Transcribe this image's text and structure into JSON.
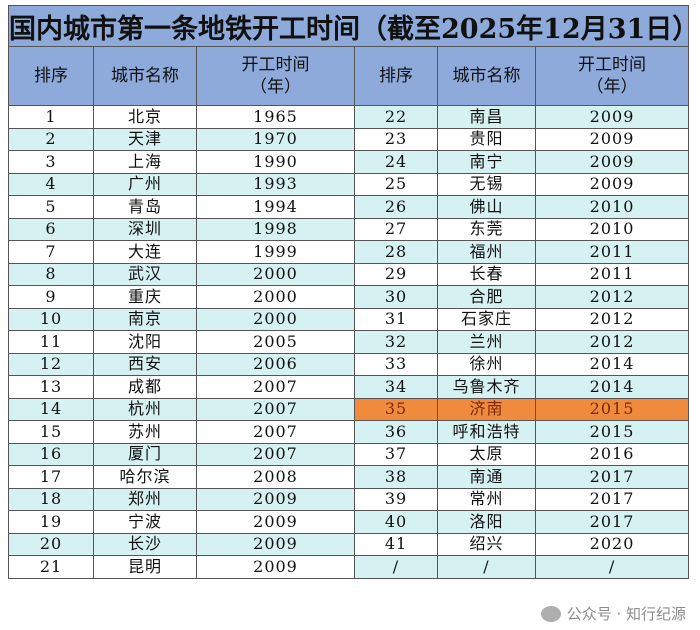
{
  "title": "国内城市第一条地铁开工时间（截至2025年12月31日）",
  "headers": {
    "rank": "排序",
    "city": "城市名称",
    "year_line1": "开工时间",
    "year_line2": "（年）"
  },
  "colors": {
    "header": "#8eaadb",
    "stripe": "#d6f1f1",
    "highlight": "#f08a3c"
  },
  "highlighted_rank": "35",
  "left": [
    [
      "1",
      "北京",
      "1965"
    ],
    [
      "2",
      "天津",
      "1970"
    ],
    [
      "3",
      "上海",
      "1990"
    ],
    [
      "4",
      "广州",
      "1993"
    ],
    [
      "5",
      "青岛",
      "1994"
    ],
    [
      "6",
      "深圳",
      "1998"
    ],
    [
      "7",
      "大连",
      "1999"
    ],
    [
      "8",
      "武汉",
      "2000"
    ],
    [
      "9",
      "重庆",
      "2000"
    ],
    [
      "10",
      "南京",
      "2000"
    ],
    [
      "11",
      "沈阳",
      "2005"
    ],
    [
      "12",
      "西安",
      "2006"
    ],
    [
      "13",
      "成都",
      "2007"
    ],
    [
      "14",
      "杭州",
      "2007"
    ],
    [
      "15",
      "苏州",
      "2007"
    ],
    [
      "16",
      "厦门",
      "2007"
    ],
    [
      "17",
      "哈尔滨",
      "2008"
    ],
    [
      "18",
      "郑州",
      "2009"
    ],
    [
      "19",
      "宁波",
      "2009"
    ],
    [
      "20",
      "长沙",
      "2009"
    ],
    [
      "21",
      "昆明",
      "2009"
    ]
  ],
  "right": [
    [
      "22",
      "南昌",
      "2009"
    ],
    [
      "23",
      "贵阳",
      "2009"
    ],
    [
      "24",
      "南宁",
      "2009"
    ],
    [
      "25",
      "无锡",
      "2009"
    ],
    [
      "26",
      "佛山",
      "2010"
    ],
    [
      "27",
      "东莞",
      "2010"
    ],
    [
      "28",
      "福州",
      "2011"
    ],
    [
      "29",
      "长春",
      "2011"
    ],
    [
      "30",
      "合肥",
      "2012"
    ],
    [
      "31",
      "石家庄",
      "2012"
    ],
    [
      "32",
      "兰州",
      "2012"
    ],
    [
      "33",
      "徐州",
      "2014"
    ],
    [
      "34",
      "乌鲁木齐",
      "2014"
    ],
    [
      "35",
      "济南",
      "2015"
    ],
    [
      "36",
      "呼和浩特",
      "2015"
    ],
    [
      "37",
      "太原",
      "2016"
    ],
    [
      "38",
      "南通",
      "2017"
    ],
    [
      "39",
      "常州",
      "2017"
    ],
    [
      "40",
      "洛阳",
      "2017"
    ],
    [
      "41",
      "绍兴",
      "2020"
    ],
    [
      "/",
      "/",
      "/"
    ]
  ],
  "watermark": {
    "icon": "wechat-icon",
    "text": "公众号 · 知行纪源"
  }
}
